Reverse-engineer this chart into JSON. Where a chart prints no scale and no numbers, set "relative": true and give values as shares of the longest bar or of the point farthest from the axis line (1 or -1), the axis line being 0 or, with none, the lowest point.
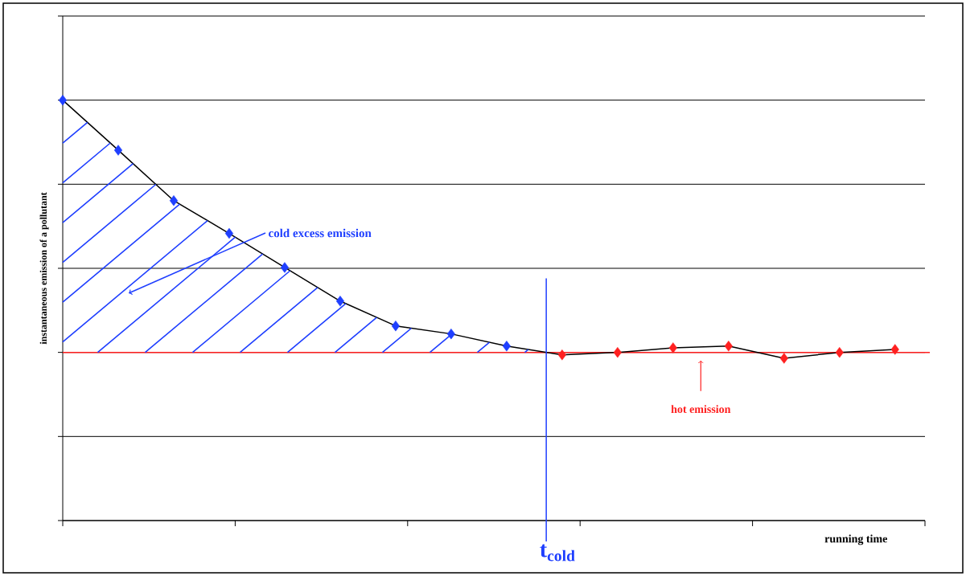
{
  "chart_data": {
    "type": "line",
    "relative": true,
    "xlabel": "running time",
    "ylabel": "instantaneous emission of a pollutant",
    "categories": [
      null,
      null,
      null,
      null,
      null,
      null,
      null,
      null,
      null,
      null,
      null,
      null,
      null,
      null,
      null,
      null
    ],
    "grid": "y",
    "marker": "diamond",
    "line_style": "solid",
    "series": [
      {
        "color": "#000000",
        "colors": [
          "#1f3fff",
          "#1f3fff",
          "#1f3fff",
          "#1f3fff",
          "#1f3fff",
          "#1f3fff",
          "#1f3fff",
          "#1f3fff",
          "#1f3fff",
          "#ff2020",
          "#ff2020",
          "#ff2020",
          "#ff2020",
          "#ff2020",
          "#ff2020",
          "#ff2020"
        ],
        "values": [
          1.0,
          0.881,
          0.761,
          0.683,
          0.602,
          0.522,
          0.463,
          0.444,
          0.415,
          0.394,
          0.4,
          0.411,
          0.415,
          0.386,
          0.4,
          0.407
        ]
      }
    ],
    "ref_lines": [
      {
        "axis": "y",
        "value": 0.4,
        "label": "hot emission",
        "color": "#ff2020"
      }
    ],
    "annotations": [
      "cold excess emission",
      "t$_{cold}$"
    ]
  }
}
